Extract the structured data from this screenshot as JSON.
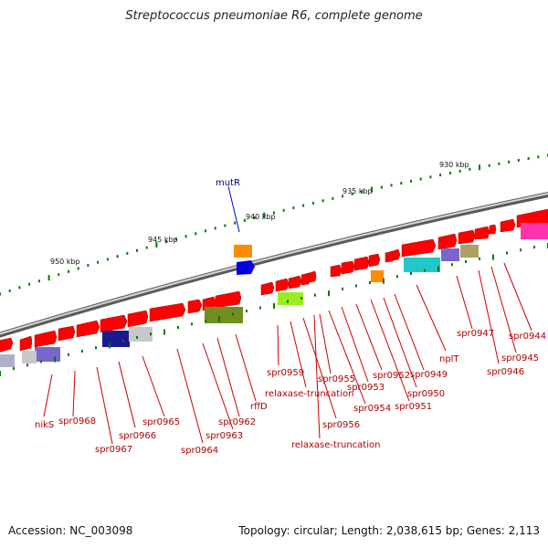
{
  "title": "Streptococcus pneumoniae R6, complete genome",
  "footer": {
    "accession": "Accession: NC_003098",
    "summary": "Topology: circular; Length: 2,038,615 bp; Genes: 2,113"
  },
  "scale_labels": [
    "930 kbp",
    "935 kbp",
    "940 kbp",
    "945 kbp",
    "950 kbp"
  ],
  "gene_labels": [
    {
      "text": "mutR",
      "color": "#000080"
    },
    {
      "text": "nikS",
      "color": "#b00000"
    },
    {
      "text": "spr0968",
      "color": "#b00000"
    },
    {
      "text": "spr0967",
      "color": "#b00000"
    },
    {
      "text": "spr0966",
      "color": "#b00000"
    },
    {
      "text": "spr0965",
      "color": "#b00000"
    },
    {
      "text": "spr0964",
      "color": "#b00000"
    },
    {
      "text": "spr0963",
      "color": "#b00000"
    },
    {
      "text": "spr0962",
      "color": "#b00000"
    },
    {
      "text": "rffD",
      "color": "#b00000"
    },
    {
      "text": "spr0959",
      "color": "#b00000"
    },
    {
      "text": "relaxase-truncation",
      "color": "#b00000"
    },
    {
      "text": "spr0956",
      "color": "#b00000"
    },
    {
      "text": "relaxase-truncation",
      "color": "#b00000"
    },
    {
      "text": "spr0955",
      "color": "#b00000"
    },
    {
      "text": "spr0954",
      "color": "#b00000"
    },
    {
      "text": "spr0953",
      "color": "#b00000"
    },
    {
      "text": "spr0952",
      "color": "#b00000"
    },
    {
      "text": "spr0951",
      "color": "#b00000"
    },
    {
      "text": "spr0950",
      "color": "#b00000"
    },
    {
      "text": "spr0949",
      "color": "#b00000"
    },
    {
      "text": "nplT",
      "color": "#b00000"
    },
    {
      "text": "spr0947",
      "color": "#b00000"
    },
    {
      "text": "spr0946",
      "color": "#b00000"
    },
    {
      "text": "spr0945",
      "color": "#b00000"
    },
    {
      "text": "spr0944",
      "color": "#b00000"
    }
  ],
  "colors": {
    "backbone": "#8a8a8a",
    "gene_red": "#ff0000",
    "tick_green": "#007a00",
    "label_red": "#b00000",
    "label_blue": "#000080"
  }
}
